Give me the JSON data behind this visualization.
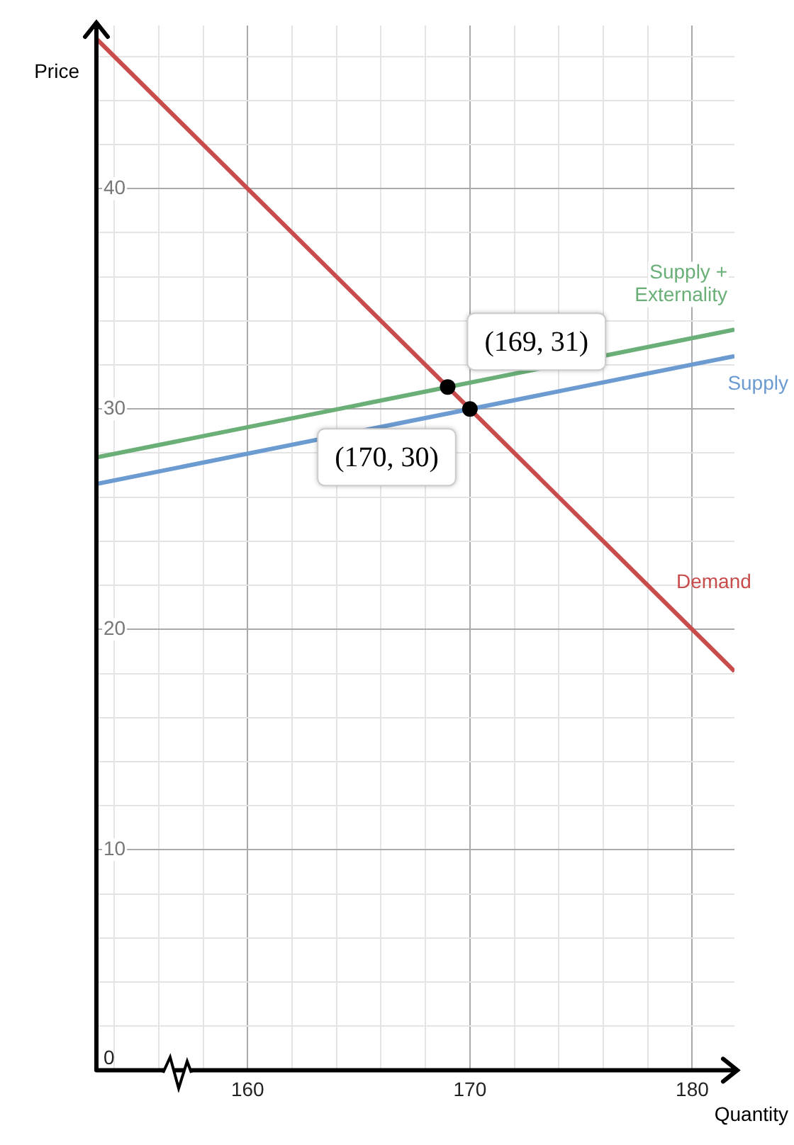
{
  "chart_data": {
    "type": "line",
    "xlabel": "Quantity",
    "ylabel": "Price",
    "xlim": [
      153.2,
      181.9
    ],
    "ylim": [
      0,
      47.4
    ],
    "xticks": [
      {
        "value": 154,
        "label": null
      },
      {
        "value": 156,
        "label": null
      },
      {
        "value": 158,
        "label": null
      },
      160,
      {
        "value": 162,
        "label": null
      },
      {
        "value": 164,
        "label": null
      },
      {
        "value": 166,
        "label": null
      },
      {
        "value": 168,
        "label": null
      },
      170,
      {
        "value": 172,
        "label": null
      },
      {
        "value": 174,
        "label": null
      },
      {
        "value": 176,
        "label": null
      },
      {
        "value": 178,
        "label": null
      },
      180
    ],
    "yticks": [
      0,
      {
        "value": 2,
        "label": null
      },
      {
        "value": 4,
        "label": null
      },
      {
        "value": 6,
        "label": null
      },
      {
        "value": 8,
        "label": null
      },
      10,
      {
        "value": 12,
        "label": null
      },
      {
        "value": 14,
        "label": null
      },
      {
        "value": 16,
        "label": null
      },
      {
        "value": 18,
        "label": null
      },
      20,
      {
        "value": 22,
        "label": null
      },
      {
        "value": 24,
        "label": null
      },
      {
        "value": 26,
        "label": null
      },
      {
        "value": 28,
        "label": null
      },
      30,
      {
        "value": 32,
        "label": null
      },
      {
        "value": 34,
        "label": null
      },
      {
        "value": 36,
        "label": null
      },
      {
        "value": 38,
        "label": null
      },
      40,
      {
        "value": 42,
        "label": null
      },
      {
        "value": 44,
        "label": null
      },
      {
        "value": 46,
        "label": null
      }
    ],
    "grid": true,
    "legend": false,
    "line_style": "solid",
    "series": [
      {
        "name": "Demand",
        "color": "#c94c4c",
        "x": [
          153.2,
          181.9
        ],
        "values": [
          46.8,
          18.1
        ]
      },
      {
        "name": "Supply",
        "color": "#6b9bd1",
        "x": [
          153.2,
          181.9
        ],
        "values": [
          26.6,
          32.4
        ]
      },
      {
        "name": "Supply + Externality",
        "color": "#6aaf78",
        "x": [
          153.2,
          181.9
        ],
        "values": [
          27.8,
          33.6
        ]
      },
      {
        "type": "scatter",
        "marker": "circle",
        "color": "#000000",
        "x": [
          169,
          170
        ],
        "values": [
          31,
          30
        ]
      }
    ],
    "annotations": [
      {
        "text": "(169, 31)",
        "x": 169,
        "y": 31
      },
      {
        "text": "(170, 30)",
        "x": 170,
        "y": 30
      }
    ]
  }
}
